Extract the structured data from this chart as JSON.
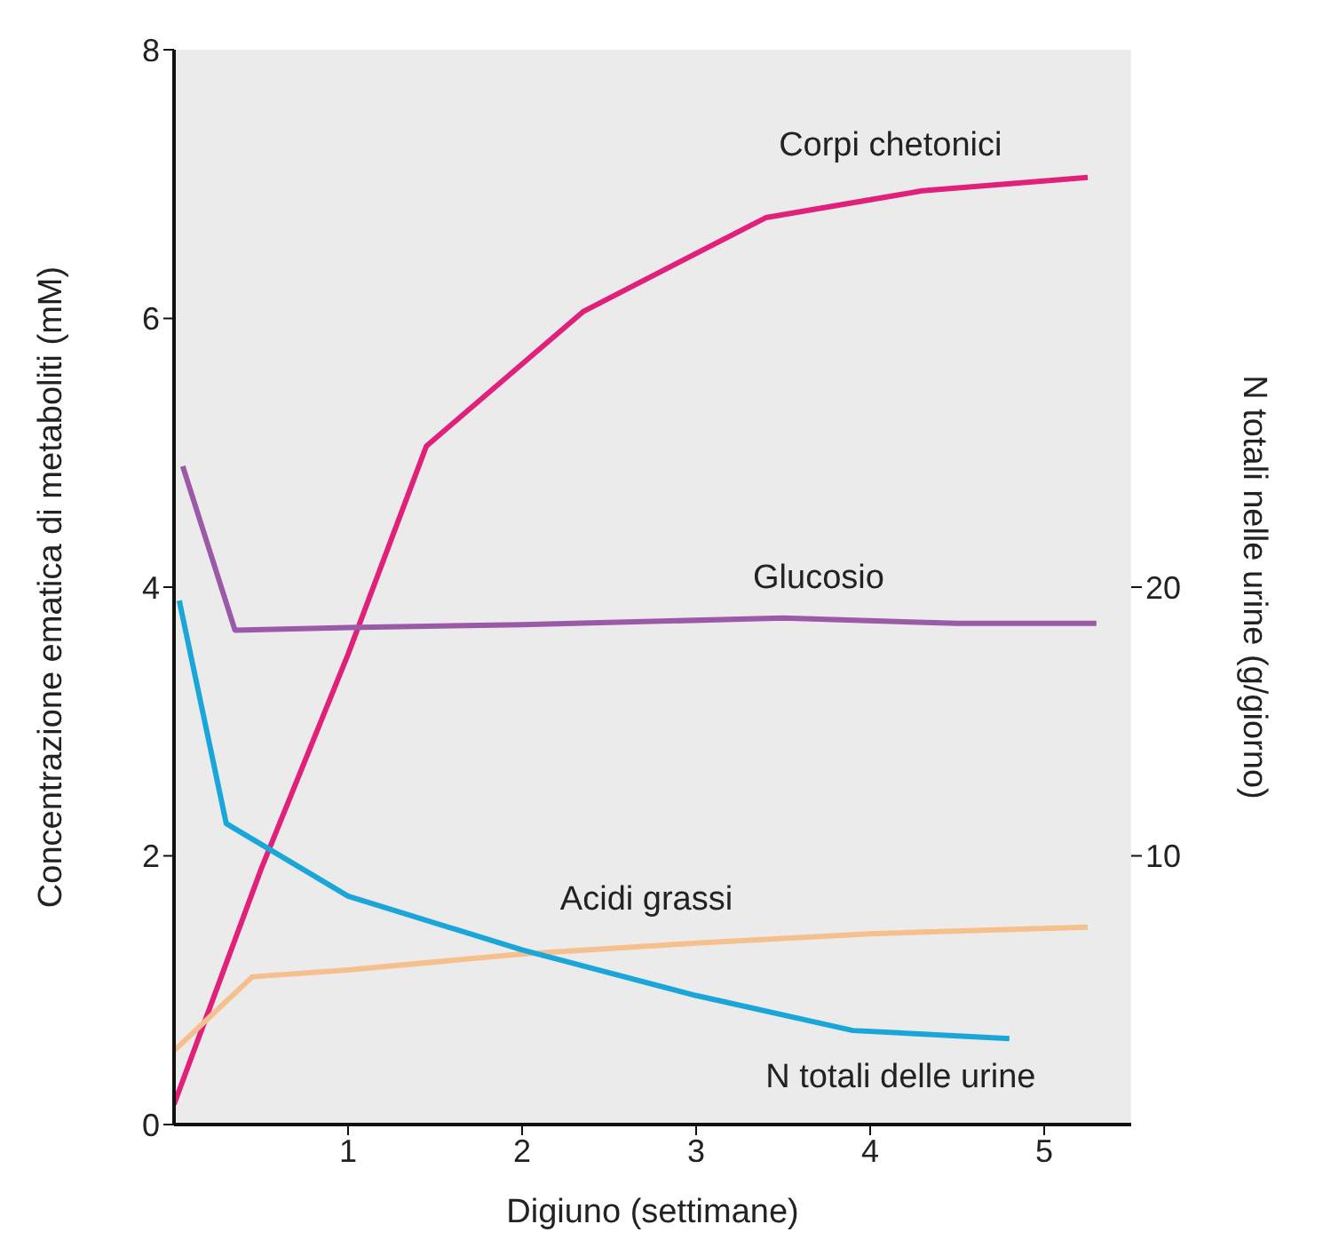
{
  "chart_data": {
    "type": "line",
    "xlabel": "Digiuno (settimane)",
    "ylabel": "Concentrazione ematica di metaboliti (mM)",
    "y2label": "N totali nelle urine (g/giorno)",
    "xlim": [
      0,
      5.5
    ],
    "xticks": [
      1,
      2,
      3,
      4,
      5
    ],
    "ylim": [
      0,
      8
    ],
    "yticks": [
      0,
      2,
      4,
      6,
      8
    ],
    "y2lim": [
      0,
      40
    ],
    "y2ticks": [
      10,
      20
    ],
    "grid": false,
    "legend": false,
    "marker": "none",
    "line_style": "solid",
    "series": [
      {
        "name": "Corpi chetonici",
        "color": "#e0207a",
        "x": [
          0,
          0.5,
          1,
          1.45,
          2.35,
          3.4,
          4.3,
          5.25
        ],
        "values": [
          0.15,
          1.9,
          3.5,
          5.05,
          6.05,
          6.75,
          6.95,
          7.05
        ]
      },
      {
        "name": "Glucosio",
        "color": "#9b5aa8",
        "x": [
          0.05,
          0.35,
          1,
          2,
          3.5,
          4.5,
          5.3
        ],
        "values": [
          4.9,
          3.68,
          3.7,
          3.72,
          3.77,
          3.73,
          3.73
        ]
      },
      {
        "name": "Acidi grassi",
        "color": "#f6c08e",
        "x": [
          0,
          0.45,
          1,
          2,
          3,
          4,
          5.25
        ],
        "values": [
          0.55,
          1.1,
          1.15,
          1.27,
          1.35,
          1.42,
          1.47
        ]
      },
      {
        "name": "N totali delle urine",
        "color": "#1aa6d8",
        "axis": "y2",
        "x": [
          0.03,
          0.3,
          1,
          2,
          3,
          3.9,
          4.8
        ],
        "values": [
          19.5,
          11.2,
          8.5,
          6.5,
          4.8,
          3.5,
          3.2
        ]
      }
    ]
  }
}
